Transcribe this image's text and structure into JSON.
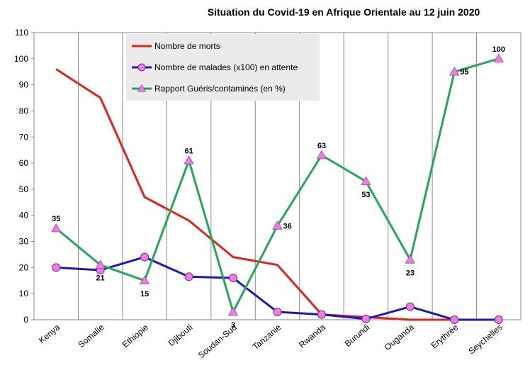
{
  "chart_data": {
    "type": "line",
    "title": "Situation du Covid-19 en Afrique Orientale au 12 juin 2020",
    "xlabel": "",
    "ylabel": "",
    "ylim": [
      0,
      110
    ],
    "yticks": [
      0,
      10,
      20,
      30,
      40,
      50,
      60,
      70,
      80,
      90,
      100,
      110
    ],
    "grid": "vertical-category-lines",
    "legend_position": "top-left-inside",
    "categories": [
      "Kenya",
      "Somalie",
      "Ethiopie",
      "Djibouti",
      "Soudan-Sud",
      "Tanzanie",
      "Rwanda",
      "Burundi",
      "Ouganda",
      "Erythrée",
      "Seychelles"
    ],
    "series": [
      {
        "name": "Nombre de morts",
        "color": "#e8201c",
        "marker": "none",
        "values": [
          96,
          85,
          47,
          38,
          24,
          21,
          2,
          1,
          0,
          0,
          null
        ]
      },
      {
        "name": "Nombre de malades (x100) en attente",
        "color": "#1c17c4",
        "marker": "circle",
        "marker_color": "#ee7be6",
        "values": [
          20,
          19,
          24,
          16.5,
          16,
          3,
          2,
          0.3,
          5,
          0,
          0
        ]
      },
      {
        "name": "Rapport Guéris/contaminés (en %)",
        "color": "#1faa55",
        "marker": "triangle",
        "marker_color": "#ee7be6",
        "values": [
          35,
          21,
          15,
          61,
          3,
          36,
          63,
          53,
          23,
          95,
          100
        ],
        "data_labels": [
          "35",
          "21",
          "15",
          "61",
          "3",
          "36",
          "63",
          "53",
          "23",
          "95",
          "100"
        ]
      }
    ]
  }
}
